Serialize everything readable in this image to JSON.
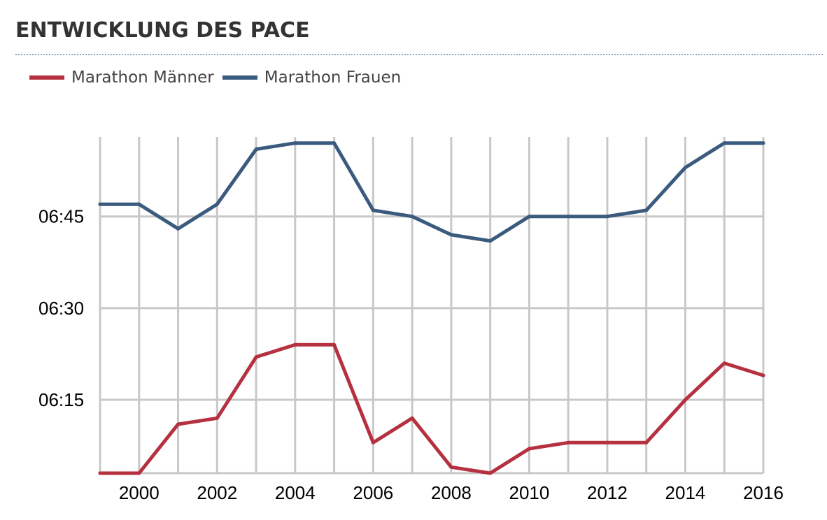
{
  "chart_data": {
    "type": "line",
    "title": "ENTWICKLUNG DES PACE",
    "x": [
      1999,
      2000,
      2001,
      2002,
      2003,
      2004,
      2005,
      2006,
      2007,
      2008,
      2009,
      2010,
      2011,
      2012,
      2013,
      2014,
      2015,
      2016
    ],
    "x_ticks": [
      "2000",
      "2002",
      "2004",
      "2006",
      "2008",
      "2010",
      "2012",
      "2014",
      "2016"
    ],
    "xlim": [
      1999,
      2016
    ],
    "y_unit": "min:sec per km",
    "y_ticks": [
      "06:15",
      "06:30",
      "06:45"
    ],
    "ylim": [
      "06:03",
      "06:58"
    ],
    "grid": true,
    "legend_position": "top-left",
    "series": [
      {
        "name": "Marathon Männer",
        "color": "#b5313f",
        "values": [
          "06:03",
          "06:03",
          "06:11",
          "06:12",
          "06:22",
          "06:24",
          "06:24",
          "06:08",
          "06:12",
          "06:04",
          "06:03",
          "06:07",
          "06:08",
          "06:08",
          "06:08",
          "06:15",
          "06:21",
          "06:19"
        ]
      },
      {
        "name": "Marathon Frauen",
        "color": "#3a5a7e",
        "values": [
          "06:47",
          "06:47",
          "06:43",
          "06:47",
          "06:56",
          "06:57",
          "06:57",
          "06:46",
          "06:45",
          "06:42",
          "06:41",
          "06:45",
          "06:45",
          "06:45",
          "06:46",
          "06:53",
          "06:57",
          "06:57"
        ]
      }
    ]
  }
}
